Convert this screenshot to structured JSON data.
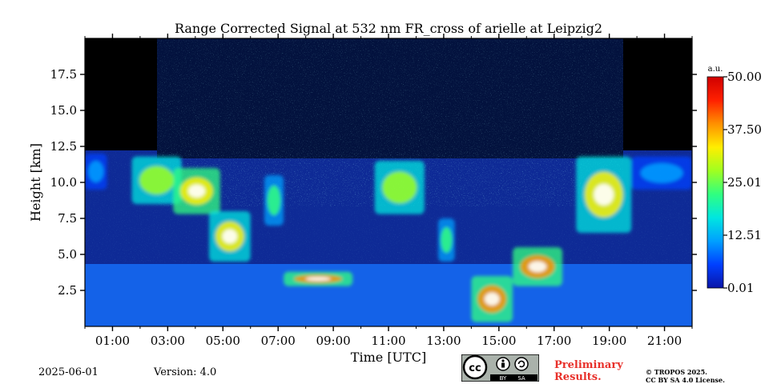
{
  "chart_data": {
    "type": "heatmap",
    "title": "Range Corrected Signal at 532 nm FR_cross of arielle at Leipzig2",
    "xlabel": "Time [UTC]",
    "ylabel": "Height [km]",
    "xlim": [
      0.0,
      22.0
    ],
    "ylim": [
      0.0,
      20.0
    ],
    "x_ticks": [
      {
        "value": 1,
        "label": "01:00"
      },
      {
        "value": 3,
        "label": "03:00"
      },
      {
        "value": 5,
        "label": "05:00"
      },
      {
        "value": 7,
        "label": "07:00"
      },
      {
        "value": 9,
        "label": "09:00"
      },
      {
        "value": 11,
        "label": "11:00"
      },
      {
        "value": 13,
        "label": "13:00"
      },
      {
        "value": 15,
        "label": "15:00"
      },
      {
        "value": 17,
        "label": "17:00"
      },
      {
        "value": 19,
        "label": "19:00"
      },
      {
        "value": 21,
        "label": "21:00"
      }
    ],
    "y_ticks": [
      {
        "value": 2.5,
        "label": "2.5"
      },
      {
        "value": 5.0,
        "label": "5.0"
      },
      {
        "value": 7.5,
        "label": "7.5"
      },
      {
        "value": 10.0,
        "label": "10.0"
      },
      {
        "value": 12.5,
        "label": "12.5"
      },
      {
        "value": 15.0,
        "label": "15.0"
      },
      {
        "value": 17.5,
        "label": "17.5"
      }
    ],
    "colorbar": {
      "unit": "a.u.",
      "range": [
        0.01,
        50.0
      ],
      "tick_labels": [
        "0.01",
        "12.51",
        "25.01",
        "37.50",
        "50.00"
      ],
      "colormap": [
        "#0a15a8",
        "#0040ff",
        "#00a0ff",
        "#00e6e0",
        "#30ff80",
        "#a0ff20",
        "#ffee00",
        "#ff9000",
        "#ff2000",
        "#d00000"
      ]
    },
    "background_color": "#0e2a96",
    "cloud_layers": [
      {
        "name": "cirrus",
        "x_start": 0.0,
        "x_end": 0.8,
        "y_low": 9.5,
        "y_high": 12.0,
        "intensity": 12
      },
      {
        "name": "cirrus",
        "x_start": 1.7,
        "x_end": 3.5,
        "y_low": 8.5,
        "y_high": 11.8,
        "intensity": 35
      },
      {
        "name": "cirrus",
        "x_start": 3.2,
        "x_end": 4.9,
        "y_low": 7.8,
        "y_high": 11.0,
        "intensity": 45
      },
      {
        "name": "cirrus",
        "x_start": 4.5,
        "x_end": 6.0,
        "y_low": 4.5,
        "y_high": 8.0,
        "intensity": 40
      },
      {
        "name": "cirrus",
        "x_start": 6.5,
        "x_end": 7.2,
        "y_low": 7.0,
        "y_high": 10.5,
        "intensity": 30
      },
      {
        "name": "boundary_layer_top",
        "x_start": 7.2,
        "x_end": 9.7,
        "y_low": 2.8,
        "y_high": 3.8,
        "intensity": 50
      },
      {
        "name": "cirrus",
        "x_start": 10.5,
        "x_end": 12.3,
        "y_low": 7.8,
        "y_high": 11.5,
        "intensity": 38
      },
      {
        "name": "cirrus",
        "x_start": 12.8,
        "x_end": 13.4,
        "y_low": 4.5,
        "y_high": 7.5,
        "intensity": 25
      },
      {
        "name": "boundary_layer",
        "x_start": 14.0,
        "x_end": 15.5,
        "y_low": 0.3,
        "y_high": 3.5,
        "intensity": 50
      },
      {
        "name": "boundary_layer_top",
        "x_start": 15.5,
        "x_end": 17.3,
        "y_low": 2.8,
        "y_high": 5.5,
        "intensity": 50
      },
      {
        "name": "cirrus",
        "x_start": 17.8,
        "x_end": 19.8,
        "y_low": 6.5,
        "y_high": 11.8,
        "intensity": 40
      },
      {
        "name": "cirrus",
        "x_start": 19.8,
        "x_end": 22.0,
        "y_low": 9.5,
        "y_high": 11.8,
        "intensity": 15
      }
    ]
  },
  "footer": {
    "date": "2025-06-01",
    "version": "Version: 4.0",
    "preliminary_line1": "Preliminary",
    "preliminary_line2": "Results.",
    "copyright_line1": "© TROPOS 2025.",
    "copyright_line2": "CC BY SA 4.0 License.",
    "badge_cc": "cc",
    "badge_by": "BY",
    "badge_sa": "SA"
  }
}
